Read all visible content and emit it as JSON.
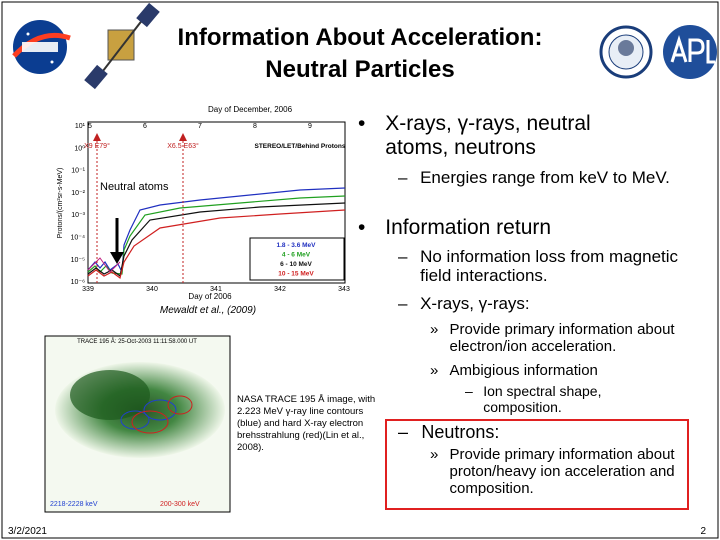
{
  "header": {
    "title": "Information About Acceleration: Neutral Particles"
  },
  "figure1": {
    "top_axis_label": "Day of December, 2006",
    "top_ticks": [
      "5",
      "6",
      "7",
      "8",
      "9"
    ],
    "flare_1": "X9 E79°",
    "flare_2": "X6.5 E63°",
    "instrument": "STEREO/LET/Behind Protons",
    "y_label": "Protons/(cm²sr-s-MeV)",
    "y_ticks": [
      "10¹",
      "10⁰",
      "10⁻¹",
      "10⁻²",
      "10⁻³",
      "10⁻⁴",
      "10⁻⁵",
      "10⁻⁶"
    ],
    "x_ticks": [
      "339",
      "340",
      "341",
      "342",
      "343"
    ],
    "x_label": "Day of 2006",
    "legend": [
      "1.8 - 3.6 MeV",
      "4 - 6 MeV",
      "6 - 10 MeV",
      "10 - 15 MeV"
    ],
    "annotation": "Neutral atoms",
    "citation": "Mewaldt et al., (2009)"
  },
  "figure2": {
    "title": "TRACE 195 Å: 25-Oct-2003 11:11:58.000 UT",
    "label_blue": "2218-2228 keV",
    "label_red": "200-300 keV",
    "caption": "NASA TRACE 195 Å image, with 2.223 MeV γ-ray line contours (blue) and hard X-ray electron brehsstrahlung (red)(Lin et al., 2008)."
  },
  "items": [
    {
      "marker": "•",
      "text": "X-rays, γ-rays, neutral atoms, neutrons"
    },
    {
      "marker": "–",
      "text": "Energies range from keV to MeV."
    },
    {
      "marker": "•",
      "text": "Information return"
    },
    {
      "marker": "–",
      "text": "No information loss from magnetic field interactions."
    },
    {
      "marker": "–",
      "text": "X-rays, γ-rays:"
    },
    {
      "marker": "»",
      "text": "Provide primary information about electron/ion acceleration."
    },
    {
      "marker": "»",
      "text": "Ambigious information"
    },
    {
      "marker": "–",
      "text": "Ion spectral shape, composition."
    },
    {
      "marker": "–",
      "text": "Neutrons:"
    },
    {
      "marker": "»",
      "text": "Provide primary information about proton/heavy ion acceleration and composition."
    }
  ],
  "footer": {
    "date": "3/2/2021",
    "page": "2"
  }
}
